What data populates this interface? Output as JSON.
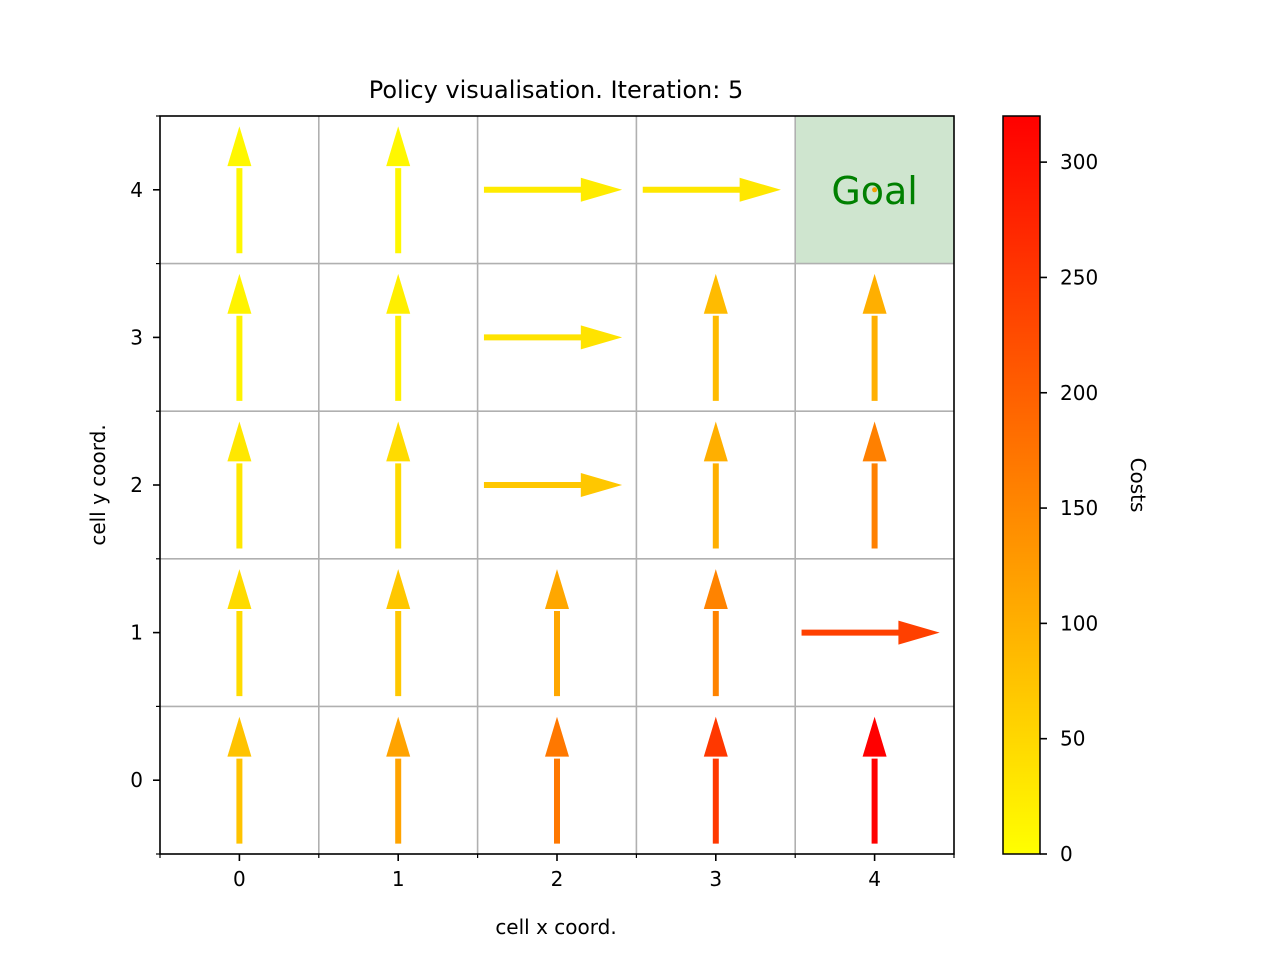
{
  "chart_data": {
    "type": "quiver",
    "title": "Policy visualisation. Iteration: 5",
    "xlabel": "cell x coord.",
    "ylabel": "cell y coord.",
    "x_ticks": [
      "0",
      "1",
      "2",
      "3",
      "4"
    ],
    "y_ticks": [
      "0",
      "1",
      "2",
      "3",
      "4"
    ],
    "xlim": [
      -0.5,
      4.5
    ],
    "ylim": [
      -0.5,
      4.5
    ],
    "grid": true,
    "goal": {
      "x": 4,
      "y": 4,
      "label": "Goal",
      "fill": "#cfe5cf",
      "text_color": "#008000"
    },
    "colorbar": {
      "label": "Costs",
      "min": 0,
      "max": 320,
      "ticks": [
        "0",
        "50",
        "100",
        "150",
        "200",
        "250",
        "300"
      ],
      "tick_values": [
        0,
        50,
        100,
        150,
        200,
        250,
        300
      ],
      "colormap": "autumn_r",
      "color_low": "#ffff00",
      "color_high": "#ff0000"
    },
    "cells": [
      {
        "x": 0,
        "y": 4,
        "action": "up",
        "cost": 10
      },
      {
        "x": 1,
        "y": 4,
        "action": "up",
        "cost": 10
      },
      {
        "x": 2,
        "y": 4,
        "action": "right",
        "cost": 25
      },
      {
        "x": 3,
        "y": 4,
        "action": "right",
        "cost": 30
      },
      {
        "x": 0,
        "y": 3,
        "action": "up",
        "cost": 15
      },
      {
        "x": 1,
        "y": 3,
        "action": "up",
        "cost": 20
      },
      {
        "x": 2,
        "y": 3,
        "action": "right",
        "cost": 35
      },
      {
        "x": 3,
        "y": 3,
        "action": "up",
        "cost": 85
      },
      {
        "x": 4,
        "y": 3,
        "action": "up",
        "cost": 100
      },
      {
        "x": 0,
        "y": 2,
        "action": "up",
        "cost": 30
      },
      {
        "x": 1,
        "y": 2,
        "action": "up",
        "cost": 45
      },
      {
        "x": 2,
        "y": 2,
        "action": "right",
        "cost": 70
      },
      {
        "x": 3,
        "y": 2,
        "action": "up",
        "cost": 100
      },
      {
        "x": 4,
        "y": 2,
        "action": "up",
        "cost": 160
      },
      {
        "x": 0,
        "y": 1,
        "action": "up",
        "cost": 45
      },
      {
        "x": 1,
        "y": 1,
        "action": "up",
        "cost": 70
      },
      {
        "x": 2,
        "y": 1,
        "action": "up",
        "cost": 110
      },
      {
        "x": 3,
        "y": 1,
        "action": "up",
        "cost": 155
      },
      {
        "x": 4,
        "y": 1,
        "action": "right",
        "cost": 240
      },
      {
        "x": 0,
        "y": 0,
        "action": "up",
        "cost": 75
      },
      {
        "x": 1,
        "y": 0,
        "action": "up",
        "cost": 115
      },
      {
        "x": 2,
        "y": 0,
        "action": "up",
        "cost": 170
      },
      {
        "x": 3,
        "y": 0,
        "action": "up",
        "cost": 250
      },
      {
        "x": 4,
        "y": 0,
        "action": "up",
        "cost": 320
      }
    ]
  }
}
